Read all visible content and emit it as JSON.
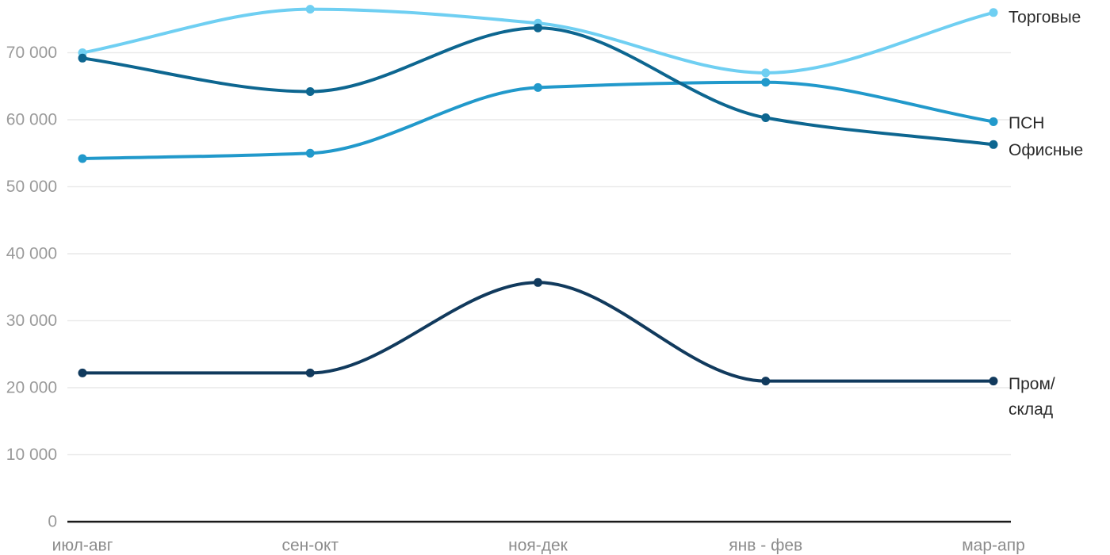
{
  "chart_data": {
    "type": "line",
    "title": "",
    "xlabel": "",
    "ylabel": "",
    "categories": [
      "июл-авг",
      "сен-окт",
      "ноя-дек",
      "янв - фев",
      "мар-апр"
    ],
    "series": [
      {
        "name": "Торговые",
        "color": "#6FCFF2",
        "values": [
          70000,
          76500,
          74400,
          67000,
          76000
        ]
      },
      {
        "name": "ПСН",
        "color": "#2199CB",
        "values": [
          54200,
          55000,
          64800,
          65600,
          59700
        ]
      },
      {
        "name": "Офисные",
        "color": "#0D6690",
        "values": [
          69200,
          64200,
          73700,
          60300,
          56300
        ]
      },
      {
        "name": "Пром/склад",
        "color": "#113A5D",
        "label_lines": [
          "Пром/",
          "склад"
        ],
        "values": [
          22200,
          22200,
          35700,
          21000,
          21000
        ]
      }
    ],
    "y_ticks": [
      {
        "value": 0,
        "label": "0"
      },
      {
        "value": 10000,
        "label": "10 000"
      },
      {
        "value": 20000,
        "label": "20 000"
      },
      {
        "value": 30000,
        "label": "30 000"
      },
      {
        "value": 40000,
        "label": "40 000"
      },
      {
        "value": 50000,
        "label": "50 000"
      },
      {
        "value": 60000,
        "label": "60 000"
      },
      {
        "value": 70000,
        "label": "70 000"
      }
    ],
    "ylim": [
      0,
      77900
    ],
    "grid": true,
    "legend_position": "right-inline",
    "colors": {
      "grid_line": "#E9E9E9",
      "axis_line": "#1A1A1A",
      "y_tick_text": "#9A9A9A",
      "x_tick_text": "#8C8C8C",
      "series_label_text": "#2B2B2B",
      "background": "#FFFFFF"
    }
  }
}
